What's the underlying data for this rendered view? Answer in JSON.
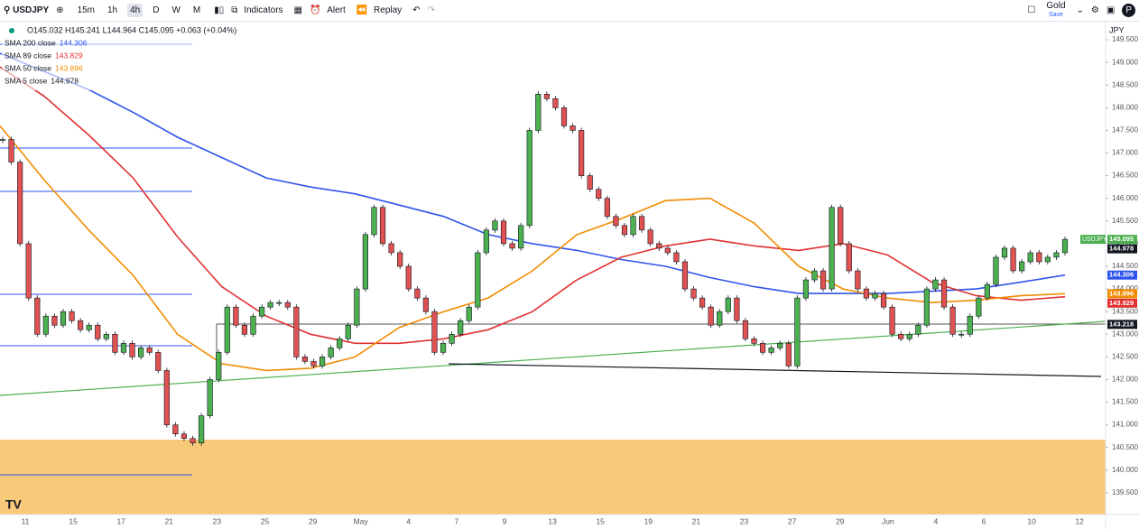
{
  "toolbar": {
    "symbol": "USDJPY",
    "intervals": [
      "15m",
      "1h",
      "4h",
      "D",
      "W",
      "M"
    ],
    "indicators": "Indicators",
    "alert": "Alert",
    "replay": "Replay",
    "layout_name": "Gold",
    "save": "Save",
    "currency": "JPY"
  },
  "legend": {
    "ohlc": "O145.032 H145.241 L144.964 C145.095 +0.063 (+0.04%)",
    "items": [
      {
        "name": "SMA 200 close",
        "value": "144.306",
        "color": "#2f54eb"
      },
      {
        "name": "SMA 89 close",
        "value": "143.829",
        "color": "#e03131"
      },
      {
        "name": "SMA 50 close",
        "value": "143.896",
        "color": "#f08c00"
      },
      {
        "name": "SMA 5 close",
        "value": "144.978",
        "color": "#131722"
      }
    ]
  },
  "chart_data": {
    "type": "candlestick",
    "closes": [
      147.3,
      146.8,
      145.0,
      143.8,
      143.0,
      143.4,
      143.2,
      143.5,
      143.3,
      143.1,
      143.2,
      142.9,
      143.0,
      142.6,
      142.8,
      142.5,
      142.7,
      142.6,
      142.2,
      141.0,
      140.8,
      140.7,
      140.6,
      141.2,
      142.0,
      142.6,
      143.6,
      143.2,
      143.0,
      143.4,
      143.6,
      143.7,
      143.7,
      143.6,
      142.5,
      142.4,
      142.3,
      142.5,
      142.7,
      142.9,
      143.2,
      144.0,
      145.2,
      145.8,
      145.0,
      144.8,
      144.5,
      144.0,
      143.8,
      143.5,
      142.6,
      142.8,
      143.0,
      143.3,
      143.6,
      144.8,
      145.3,
      145.5,
      145.0,
      144.9,
      145.4,
      147.5,
      148.3,
      148.2,
      148.0,
      147.6,
      147.5,
      146.5,
      146.2,
      146.0,
      145.6,
      145.4,
      145.2,
      145.6,
      145.3,
      145.0,
      144.9,
      144.8,
      144.6,
      144.0,
      143.8,
      143.6,
      143.2,
      143.5,
      143.8,
      143.3,
      142.9,
      142.8,
      142.6,
      142.7,
      142.8,
      142.3,
      143.8,
      144.2,
      144.4,
      144.0,
      145.8,
      145.0,
      144.4,
      144.0,
      143.8,
      143.9,
      143.6,
      143.0,
      142.9,
      143.0,
      143.2,
      144.0,
      144.2,
      143.6,
      143.0,
      143.0,
      143.4,
      143.8,
      144.1,
      144.7,
      144.9,
      144.4,
      144.6,
      144.8,
      144.6,
      144.7,
      144.8,
      145.095
    ],
    "up_color": "#4caf50",
    "down_color": "#e05252",
    "series": [
      {
        "name": "SMA 200 close",
        "color": "#2f54eb",
        "values": [
          149.2,
          148.8,
          148.4,
          147.9,
          147.35,
          146.9,
          146.45,
          146.25,
          146.1,
          145.85,
          145.6,
          145.2,
          145.0,
          144.85,
          144.65,
          144.5,
          144.25,
          144.05,
          143.9,
          143.9,
          143.9,
          143.95,
          144.0,
          144.15,
          144.306
        ]
      },
      {
        "name": "SMA 89 close",
        "color": "#e03131",
        "values": [
          148.9,
          148.25,
          147.4,
          146.45,
          145.15,
          144.05,
          143.4,
          143.0,
          142.8,
          142.8,
          142.9,
          143.1,
          143.5,
          144.2,
          144.7,
          144.95,
          145.1,
          144.95,
          144.85,
          145.0,
          144.75,
          144.15,
          143.85,
          143.75,
          143.829
        ]
      },
      {
        "name": "SMA 50 close",
        "color": "#f08c00",
        "values": [
          147.6,
          146.4,
          145.3,
          144.3,
          143.0,
          142.35,
          142.2,
          142.25,
          142.5,
          143.15,
          143.5,
          143.8,
          144.4,
          145.2,
          145.55,
          145.95,
          146.0,
          145.45,
          144.5,
          144.0,
          143.8,
          143.7,
          143.75,
          143.85,
          143.896
        ]
      }
    ],
    "ylim": [
      139.02,
      149.9
    ],
    "yticks": [
      {
        "value": 139.5,
        "label": "139.500"
      },
      {
        "value": 140,
        "label": "140.000"
      },
      {
        "value": 140.5,
        "label": "140.500"
      },
      {
        "value": 141,
        "label": "141.000"
      },
      {
        "value": 141.5,
        "label": "141.500"
      },
      {
        "value": 142,
        "label": "142.000"
      },
      {
        "value": 142.5,
        "label": "142.500"
      },
      {
        "value": 143,
        "label": "143.000"
      },
      {
        "value": 143.5,
        "label": "143.500"
      },
      {
        "value": 144,
        "label": "144.000"
      },
      {
        "value": 144.5,
        "label": "144.500"
      },
      {
        "value": 145,
        "label": "145.000"
      },
      {
        "value": 145.5,
        "label": "145.500"
      },
      {
        "value": 146,
        "label": "146.000"
      },
      {
        "value": 146.5,
        "label": "146.500"
      },
      {
        "value": 147,
        "label": "147.000"
      },
      {
        "value": 147.5,
        "label": "147.500"
      },
      {
        "value": 148,
        "label": "148.000"
      },
      {
        "value": 148.5,
        "label": "148.500"
      },
      {
        "value": 149,
        "label": "149.000"
      },
      {
        "value": 149.5,
        "label": "149.500"
      }
    ],
    "x_labels": [
      "11",
      "15",
      "17",
      "21",
      "23",
      "25",
      "29",
      "May",
      "4",
      "7",
      "9",
      "13",
      "15",
      "19",
      "21",
      "23",
      "27",
      "29",
      "Jun",
      "4",
      "6",
      "10",
      "12"
    ],
    "price_tags": [
      {
        "name": "USDJPY",
        "value": 145.095,
        "color": "#4caf50"
      },
      {
        "value": 144.978,
        "color": "#131722"
      },
      {
        "value": 144.306,
        "color": "#2f54eb"
      },
      {
        "value": 143.896,
        "color": "#f08c00"
      },
      {
        "value": 143.829,
        "color": "#e03131"
      },
      {
        "value": 143.218,
        "color": "#131722"
      }
    ]
  }
}
